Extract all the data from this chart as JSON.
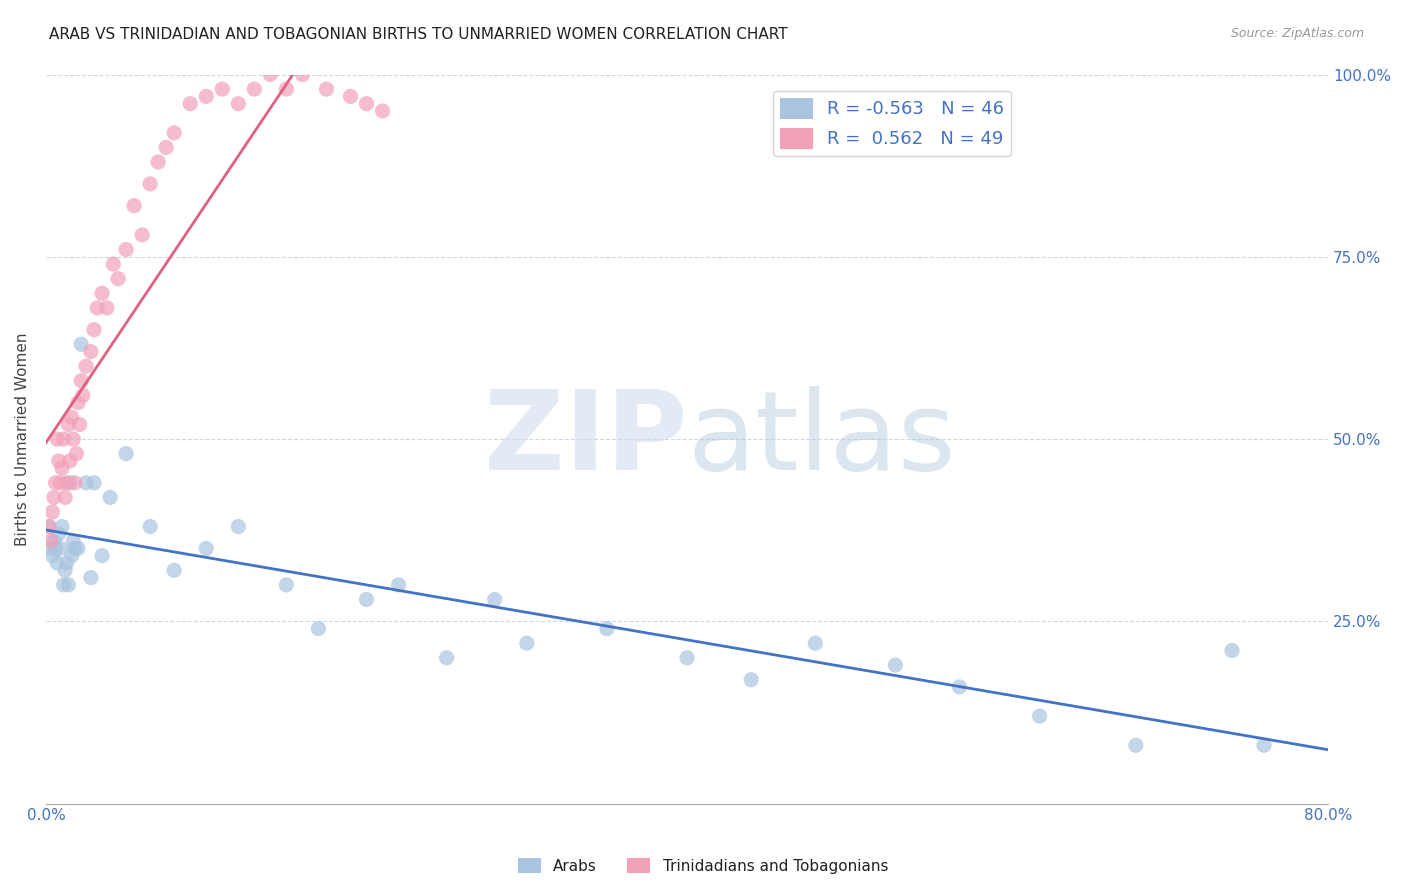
{
  "title": "ARAB VS TRINIDADIAN AND TOBAGONIAN BIRTHS TO UNMARRIED WOMEN CORRELATION CHART",
  "source": "Source: ZipAtlas.com",
  "ylabel": "Births to Unmarried Women",
  "xlim": [
    0.0,
    0.8
  ],
  "ylim": [
    0.0,
    1.0
  ],
  "arab_color": "#a8c4e0",
  "trin_color": "#f2a0b8",
  "arab_line_color": "#4472c4",
  "trin_line_color": "#e06080",
  "grid_color": "#d0d8e8",
  "title_fontsize": 11,
  "source_fontsize": 9,
  "axis_label_color": "#4472c4",
  "arab_x": [
    0.002,
    0.003,
    0.004,
    0.005,
    0.006,
    0.007,
    0.008,
    0.009,
    0.01,
    0.011,
    0.012,
    0.013,
    0.014,
    0.015,
    0.016,
    0.017,
    0.018,
    0.02,
    0.022,
    0.025,
    0.028,
    0.03,
    0.035,
    0.04,
    0.05,
    0.065,
    0.08,
    0.1,
    0.12,
    0.15,
    0.17,
    0.2,
    0.22,
    0.25,
    0.28,
    0.3,
    0.35,
    0.4,
    0.44,
    0.48,
    0.53,
    0.57,
    0.62,
    0.68,
    0.74,
    0.76
  ],
  "arab_y": [
    0.38,
    0.35,
    0.34,
    0.36,
    0.35,
    0.33,
    0.37,
    0.35,
    0.38,
    0.3,
    0.32,
    0.33,
    0.3,
    0.44,
    0.34,
    0.36,
    0.35,
    0.35,
    0.63,
    0.44,
    0.31,
    0.44,
    0.34,
    0.42,
    0.48,
    0.38,
    0.32,
    0.35,
    0.38,
    0.3,
    0.24,
    0.28,
    0.3,
    0.2,
    0.28,
    0.22,
    0.24,
    0.2,
    0.17,
    0.22,
    0.19,
    0.16,
    0.12,
    0.08,
    0.21,
    0.08
  ],
  "trin_x": [
    0.002,
    0.003,
    0.004,
    0.005,
    0.006,
    0.007,
    0.008,
    0.009,
    0.01,
    0.011,
    0.012,
    0.013,
    0.014,
    0.015,
    0.016,
    0.017,
    0.018,
    0.019,
    0.02,
    0.021,
    0.022,
    0.023,
    0.025,
    0.028,
    0.03,
    0.032,
    0.035,
    0.038,
    0.042,
    0.045,
    0.05,
    0.055,
    0.06,
    0.065,
    0.07,
    0.075,
    0.08,
    0.09,
    0.1,
    0.11,
    0.12,
    0.13,
    0.14,
    0.15,
    0.16,
    0.175,
    0.19,
    0.2,
    0.21
  ],
  "trin_y": [
    0.38,
    0.36,
    0.4,
    0.42,
    0.44,
    0.5,
    0.47,
    0.44,
    0.46,
    0.5,
    0.42,
    0.44,
    0.52,
    0.47,
    0.53,
    0.5,
    0.44,
    0.48,
    0.55,
    0.52,
    0.58,
    0.56,
    0.6,
    0.62,
    0.65,
    0.68,
    0.7,
    0.68,
    0.74,
    0.72,
    0.76,
    0.82,
    0.78,
    0.85,
    0.88,
    0.9,
    0.92,
    0.96,
    0.97,
    0.98,
    0.96,
    0.98,
    1.0,
    0.98,
    1.0,
    0.98,
    0.97,
    0.96,
    0.95
  ]
}
